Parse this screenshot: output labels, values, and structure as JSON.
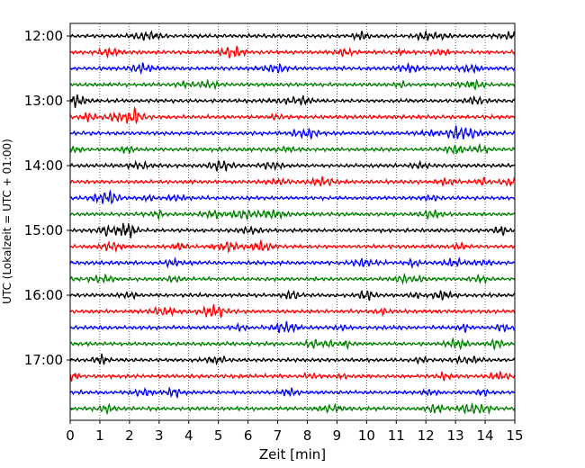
{
  "chart_data": {
    "type": "line",
    "title": "",
    "xlabel": "Zeit  [min]",
    "ylabel": "UTC (Lokalzeit = UTC + 01:00)",
    "xlim": [
      0,
      15
    ],
    "x_ticks": [
      "0",
      "1",
      "2",
      "3",
      "4",
      "5",
      "6",
      "7",
      "8",
      "9",
      "10",
      "11",
      "12",
      "13",
      "14",
      "15"
    ],
    "y_ticks": [
      "12:00",
      "13:00",
      "14:00",
      "15:00",
      "16:00",
      "17:00"
    ],
    "grid": "vertical dotted lines at each minute",
    "trace_interval_minutes": 15,
    "series_colors": [
      "#000000",
      "#ff0000",
      "#0000ff",
      "#008000"
    ],
    "trace_start_times": [
      "12:00",
      "12:15",
      "12:30",
      "12:45",
      "13:00",
      "13:15",
      "13:30",
      "13:45",
      "14:00",
      "14:15",
      "14:30",
      "14:45",
      "15:00",
      "15:15",
      "15:30",
      "15:45",
      "16:00",
      "16:15",
      "16:30",
      "16:45",
      "17:00",
      "17:15",
      "17:30",
      "17:45"
    ]
  }
}
